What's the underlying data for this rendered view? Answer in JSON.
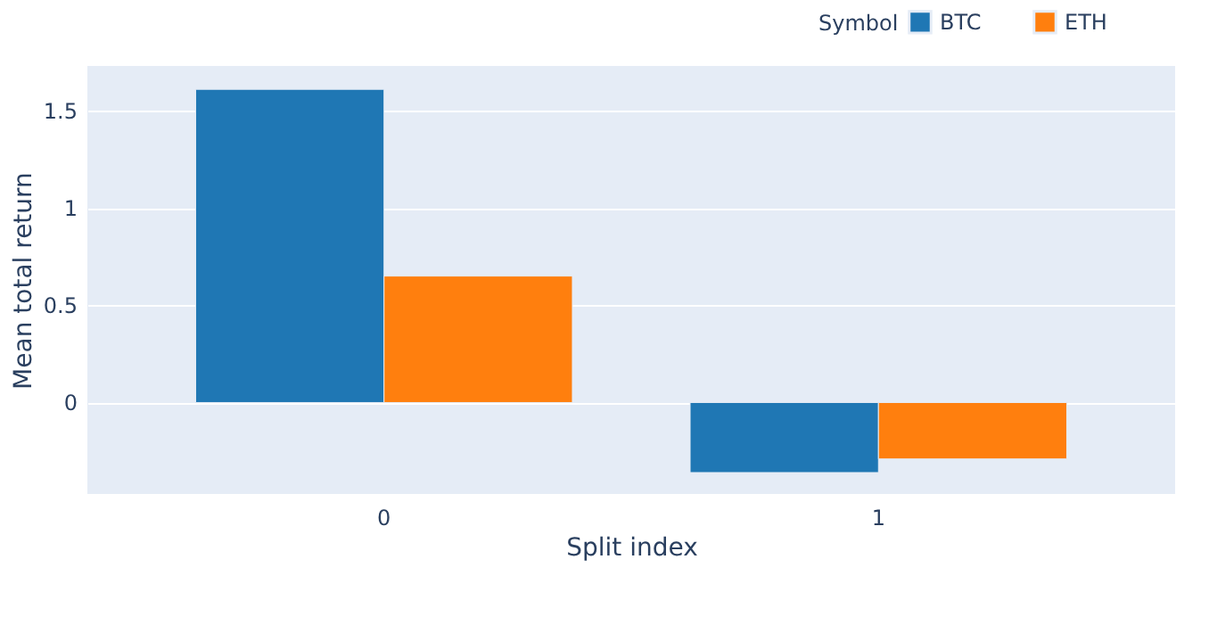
{
  "chart_data": {
    "type": "bar",
    "xlabel": "Split index",
    "ylabel": "Mean total return",
    "legend_title": "Symbol",
    "categories": [
      "0",
      "1"
    ],
    "series": [
      {
        "name": "BTC",
        "color": "#1f77b4",
        "values": [
          1.61,
          -0.36
        ]
      },
      {
        "name": "ETH",
        "color": "#ff7f0e",
        "values": [
          0.65,
          -0.29
        ]
      }
    ],
    "ylim": [
      -0.47,
      1.73
    ],
    "yticks": [
      0,
      0.5,
      1,
      1.5
    ],
    "grid": "y",
    "legend": "top right"
  }
}
